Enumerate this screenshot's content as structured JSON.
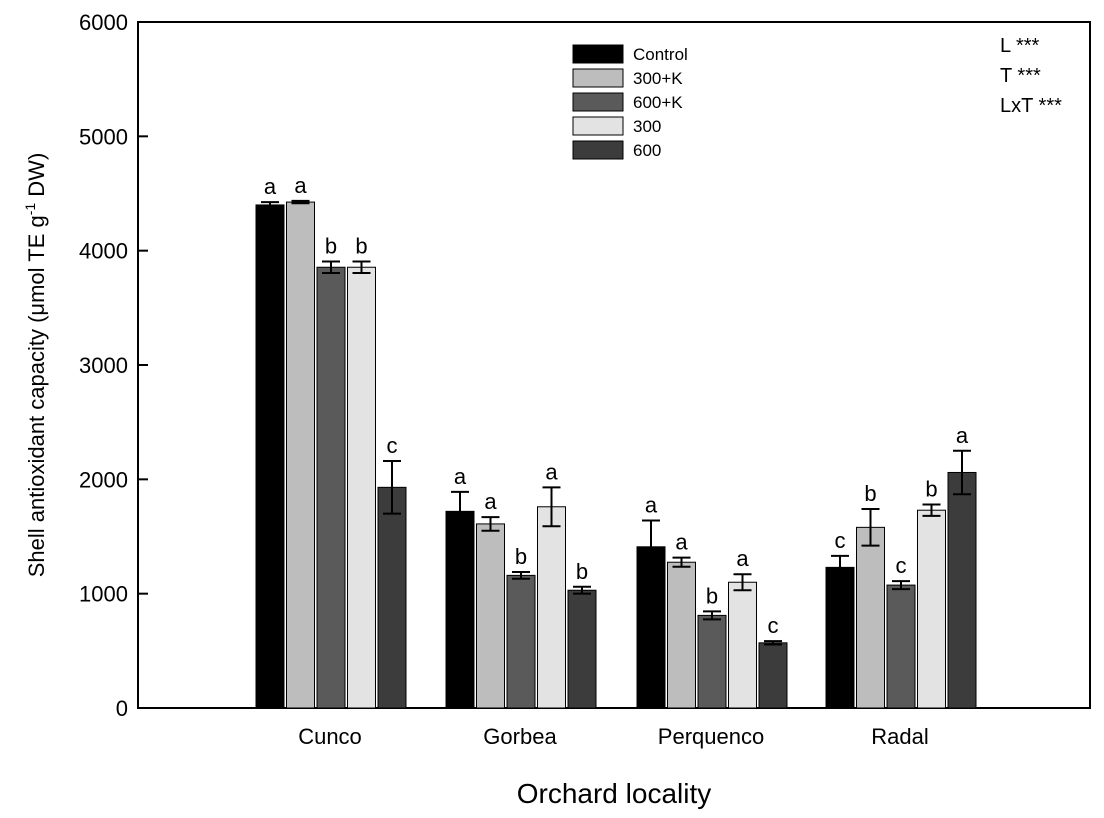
{
  "chart_data": {
    "type": "bar",
    "title": "",
    "xlabel": "Orchard locality",
    "ylabel_main": "Shell antioxidant capacity (",
    "ylabel_mu": "μmol TE g",
    "ylabel_sup": "-1",
    "ylabel_end": " DW)",
    "ylim": [
      0,
      6000
    ],
    "yticks": [
      0,
      1000,
      2000,
      3000,
      4000,
      5000,
      6000
    ],
    "categories": [
      "Cunco",
      "Gorbea",
      "Perquenco",
      "Radal"
    ],
    "legend_position": "top-center",
    "grid": false,
    "series": [
      {
        "name": "Control",
        "color": "#000000",
        "values": [
          4400,
          1720,
          1410,
          1230
        ],
        "errors": [
          25,
          170,
          230,
          100
        ],
        "letters": [
          "a",
          "a",
          "a",
          "c"
        ]
      },
      {
        "name": "300+K",
        "color": "#bdbdbd",
        "values": [
          4425,
          1610,
          1275,
          1580
        ],
        "errors": [
          10,
          60,
          40,
          160
        ],
        "letters": [
          "a",
          "a",
          "a",
          "b"
        ]
      },
      {
        "name": "600+K",
        "color": "#5a5a5a",
        "values": [
          3855,
          1160,
          810,
          1075
        ],
        "errors": [
          50,
          30,
          35,
          35
        ],
        "letters": [
          "b",
          "b",
          "b",
          "c"
        ]
      },
      {
        "name": "300",
        "color": "#e3e3e3",
        "values": [
          3855,
          1760,
          1100,
          1730
        ],
        "errors": [
          50,
          170,
          70,
          50
        ],
        "letters": [
          "b",
          "a",
          "a",
          "b"
        ]
      },
      {
        "name": "600",
        "color": "#3c3c3c",
        "values": [
          1930,
          1030,
          570,
          2060
        ],
        "errors": [
          230,
          30,
          15,
          190
        ],
        "letters": [
          "c",
          "b",
          "c",
          "a"
        ]
      }
    ],
    "annotations": [
      "L ***",
      "T ***",
      "LxT ***"
    ]
  }
}
